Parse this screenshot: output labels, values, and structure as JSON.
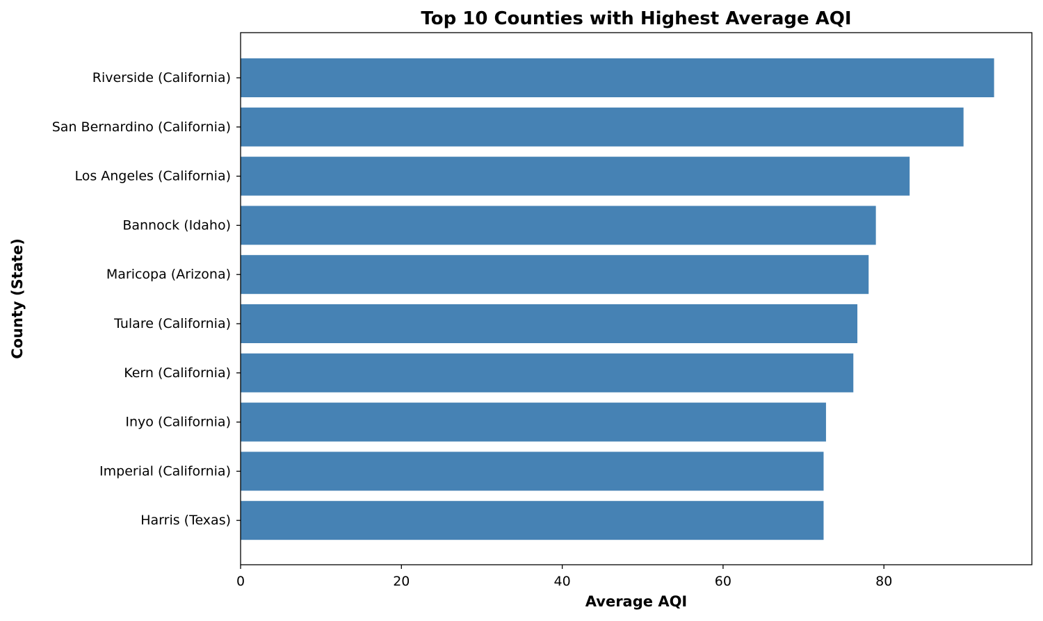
{
  "chart_data": {
    "type": "bar",
    "orientation": "horizontal",
    "title": "Top 10 Counties with Highest Average AQI",
    "xlabel": "Average AQI",
    "ylabel": "County (State)",
    "categories": [
      "Riverside (California)",
      "San Bernardino (California)",
      "Los Angeles (California)",
      "Bannock (Idaho)",
      "Maricopa (Arizona)",
      "Tulare (California)",
      "Kern (California)",
      "Inyo (California)",
      "Imperial (California)",
      "Harris (Texas)"
    ],
    "values": [
      93.7,
      89.9,
      83.2,
      79.0,
      78.1,
      76.7,
      76.2,
      72.8,
      72.5,
      72.5
    ],
    "xlim": [
      0,
      98.4
    ],
    "xticks": [
      0,
      20,
      40,
      60,
      80
    ],
    "grid": false,
    "bar_color": "#4682b4"
  }
}
